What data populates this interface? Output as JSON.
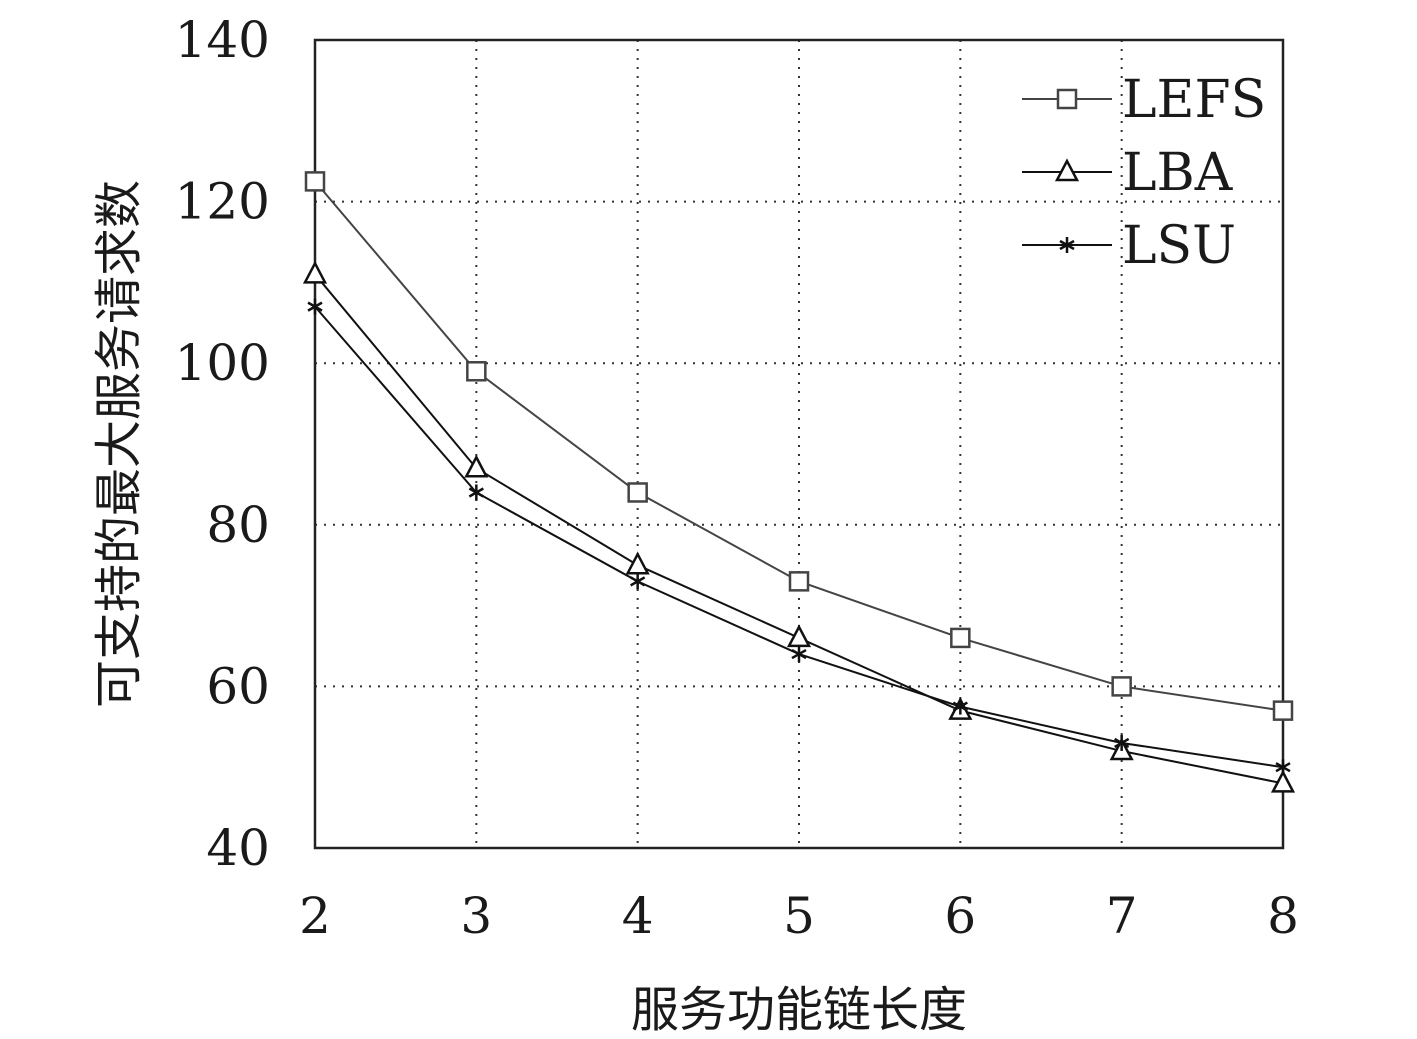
{
  "chart_data": {
    "type": "line",
    "xlabel": "服务功能链长度",
    "ylabel": "可支持的最大服务请求数",
    "x": [
      2,
      3,
      4,
      5,
      6,
      7,
      8
    ],
    "xlim": [
      2,
      8
    ],
    "ylim": [
      40,
      140
    ],
    "yticks": [
      40,
      60,
      80,
      100,
      120,
      140
    ],
    "grid": true,
    "legend_position": "top-right",
    "series": [
      {
        "name": "LEFS",
        "marker": "square",
        "color": "#444444",
        "values": [
          122.5,
          99,
          84,
          73,
          66,
          60,
          57
        ]
      },
      {
        "name": "LBA",
        "marker": "triangle",
        "color": "#111111",
        "values": [
          111,
          87,
          75,
          66,
          57,
          52,
          48
        ]
      },
      {
        "name": "LSU",
        "marker": "star",
        "color": "#111111",
        "values": [
          107,
          84,
          73,
          64,
          57.5,
          53,
          50
        ]
      }
    ]
  }
}
